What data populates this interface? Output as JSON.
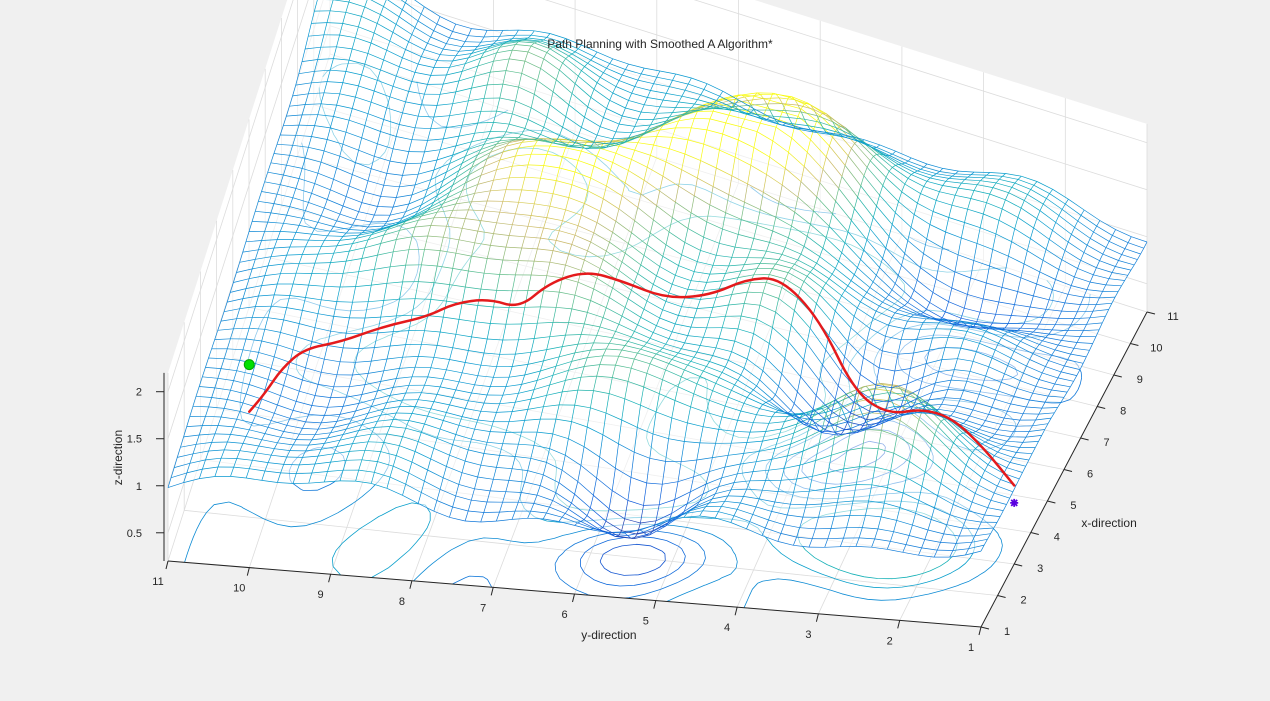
{
  "chart_data": {
    "type": "surface",
    "title": "Path Planning with Smoothed A Algorithm*",
    "xlabel": "x-direction",
    "ylabel": "y-direction",
    "zlabel": "z-direction",
    "x_ticks": [
      "1",
      "2",
      "3",
      "4",
      "5",
      "6",
      "7",
      "8",
      "9",
      "10",
      "11"
    ],
    "y_ticks": [
      "1",
      "2",
      "3",
      "4",
      "5",
      "6",
      "7",
      "8",
      "9",
      "10",
      "11"
    ],
    "z_ticks": [
      "0.5",
      "1",
      "1.5",
      "2"
    ],
    "xlim": [
      1,
      11
    ],
    "ylim": [
      1,
      11
    ],
    "zlim": [
      0.2,
      2.2
    ],
    "grid": true,
    "colormap": "parula",
    "colors": {
      "path": "#e41a1c",
      "start_marker": "#00e000",
      "goal_marker": "#5a00e0",
      "background": "#f0f0f0",
      "axes_face": "#ffffff",
      "grid": "#dcdcdc"
    },
    "path": {
      "start": {
        "x": 2.5,
        "y": 10.3,
        "z": 1.55
      },
      "goal": {
        "x": 3.0,
        "y": 1.0,
        "z": 0.85
      },
      "points": [
        [
          2.5,
          10.3
        ],
        [
          3.0,
          10.2
        ],
        [
          3.5,
          10.1
        ],
        [
          3.9,
          9.9
        ],
        [
          4.1,
          9.5
        ],
        [
          4.3,
          9.0
        ],
        [
          4.4,
          8.5
        ],
        [
          4.6,
          8.2
        ],
        [
          4.7,
          7.8
        ],
        [
          4.6,
          7.4
        ],
        [
          4.9,
          7.1
        ],
        [
          5.2,
          6.7
        ],
        [
          5.4,
          6.3
        ],
        [
          5.6,
          5.8
        ],
        [
          5.8,
          5.3
        ],
        [
          6.0,
          4.9
        ],
        [
          6.1,
          4.5
        ],
        [
          6.0,
          4.0
        ],
        [
          5.7,
          3.5
        ],
        [
          5.3,
          3.0
        ],
        [
          4.8,
          2.5
        ],
        [
          4.2,
          2.0
        ],
        [
          3.6,
          1.5
        ],
        [
          3.0,
          1.0
        ]
      ]
    }
  }
}
